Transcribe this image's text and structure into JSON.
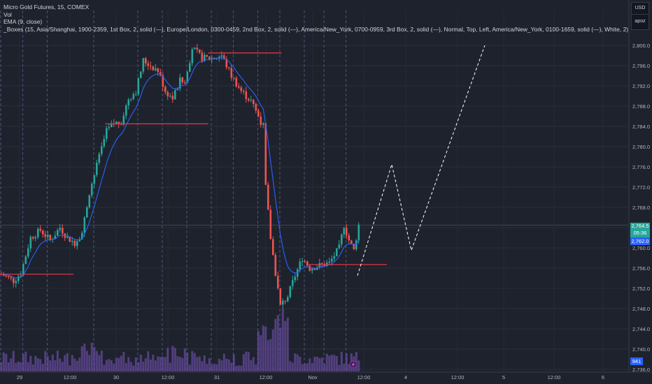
{
  "legend": {
    "title": "Micro Gold Futures, 15, COMEX",
    "vol": "Vol",
    "ema": "EMA (9, close)",
    "boxes": "_Boxes (15, Asia/Shanghai, 1900-2359, 1st Box, 2, solid (—), Europe/London, 0300-0459, 2nd Box, 2, solid (—), America/New_York, 0700-0959, 3rd Box, 2, solid (—), Normal, Top, Left, America/New_York, 0100-1659, solid (—), White, 2)"
  },
  "currency": {
    "usd": "USD",
    "apoz": "apoz"
  },
  "price_labels": {
    "last": "2,764.5",
    "countdown": "05:36",
    "ema": "2,762.0",
    "volume": "941"
  },
  "colors": {
    "up": "#26a69a",
    "down": "#ef5350",
    "ema": "#2962ff",
    "volume": "#7e57c2",
    "box_line": "#f23645",
    "projection": "#ffffff"
  },
  "chart_data": {
    "type": "candlestick",
    "y_ticks": [
      "2,800.0",
      "2,796.0",
      "2,792.0",
      "2,788.0",
      "2,784.0",
      "2,780.0",
      "2,776.0",
      "2,772.0",
      "2,768.0",
      "2,764.0",
      "2,760.0",
      "2,756.0",
      "2,752.0",
      "2,748.0",
      "2,744.0",
      "2,740.0",
      "2,736.0"
    ],
    "x_ticks": [
      "29",
      "12:00",
      "30",
      "12:00",
      "31",
      "12:00",
      "Nov",
      "12:00",
      "4",
      "12:00",
      "5",
      "12:00",
      "6"
    ],
    "ylim": [
      2735.5,
      2804.0
    ],
    "close_path": [
      [
        0,
        2754.8
      ],
      [
        5,
        2753.5
      ],
      [
        8,
        2755.0
      ],
      [
        12,
        2762.0
      ],
      [
        16,
        2763.5
      ],
      [
        20,
        2761.5
      ],
      [
        24,
        2764.0
      ],
      [
        27,
        2762.0
      ],
      [
        30,
        2761.0
      ],
      [
        33,
        2763.0
      ],
      [
        36,
        2771.0
      ],
      [
        40,
        2778.0
      ],
      [
        43,
        2783.0
      ],
      [
        46,
        2784.5
      ],
      [
        49,
        2785.0
      ],
      [
        52,
        2789.5
      ],
      [
        55,
        2791.0
      ],
      [
        58,
        2797.0
      ],
      [
        61,
        2796.0
      ],
      [
        64,
        2795.0
      ],
      [
        67,
        2791.0
      ],
      [
        70,
        2789.5
      ],
      [
        73,
        2793.0
      ],
      [
        75,
        2792.5
      ],
      [
        78,
        2799.5
      ],
      [
        82,
        2797.5
      ],
      [
        86,
        2797.5
      ],
      [
        90,
        2798.0
      ],
      [
        94,
        2794.0
      ],
      [
        98,
        2791.0
      ],
      [
        102,
        2789.0
      ],
      [
        105,
        2786.0
      ],
      [
        107,
        2784.0
      ],
      [
        108,
        2772.0
      ],
      [
        110,
        2762.0
      ],
      [
        112,
        2755.0
      ],
      [
        114,
        2748.5
      ],
      [
        117,
        2750.5
      ],
      [
        120,
        2754.5
      ],
      [
        123,
        2758.0
      ],
      [
        126,
        2756.0
      ],
      [
        130,
        2756.5
      ],
      [
        134,
        2757.0
      ],
      [
        138,
        2760.0
      ],
      [
        140,
        2764.5
      ],
      [
        142,
        2761.5
      ],
      [
        144,
        2759.5
      ],
      [
        146,
        2764.5
      ]
    ],
    "projection": [
      [
        146,
        2754.5
      ],
      [
        160,
        2776.5
      ],
      [
        168,
        2759.5
      ],
      [
        198,
        2800.0
      ]
    ],
    "boxes": [
      {
        "x_start": 0,
        "x_end": 30,
        "price": 2754.8
      },
      {
        "x_start": 43,
        "x_end": 85,
        "price": 2784.5
      },
      {
        "x_start": 85,
        "x_end": 115,
        "price": 2798.5
      },
      {
        "x_start": 126,
        "x_end": 158,
        "price": 2756.7
      }
    ],
    "session_separators": [
      0,
      9,
      19,
      38,
      56,
      66,
      76,
      86,
      95,
      105,
      114,
      124,
      132,
      141
    ]
  }
}
